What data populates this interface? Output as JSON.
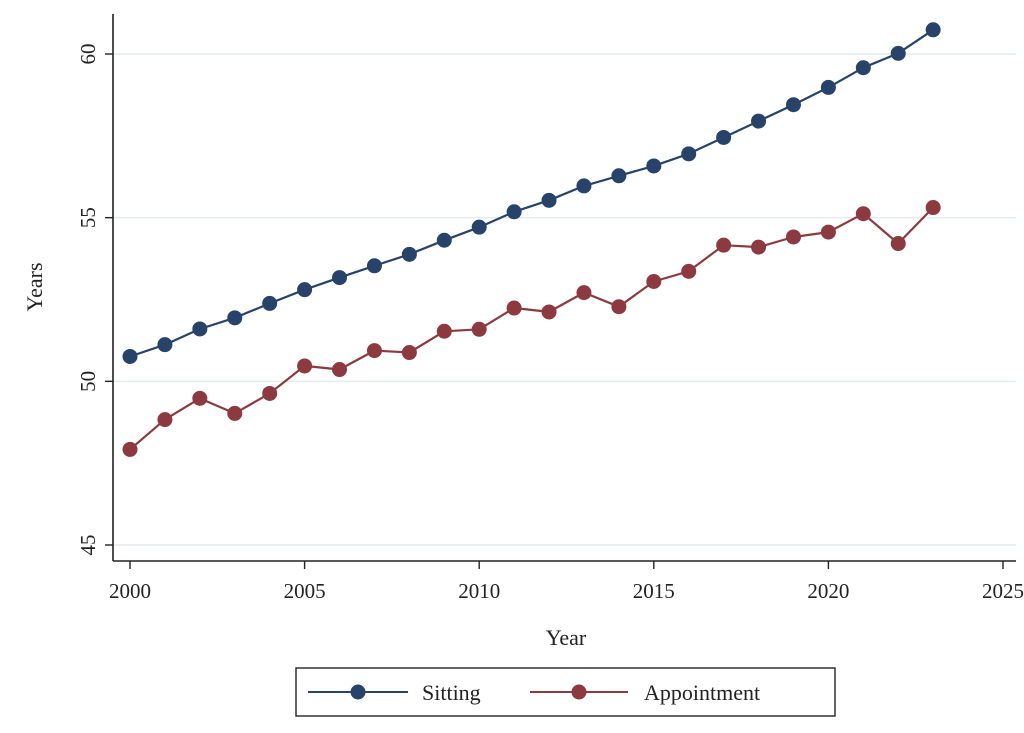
{
  "chart_data": {
    "type": "line",
    "title": "",
    "xlabel": "Year",
    "ylabel": "Years",
    "xlim": [
      2000,
      2025
    ],
    "ylim": [
      44.5,
      61.2
    ],
    "x_ticks": [
      2000,
      2005,
      2010,
      2015,
      2020,
      2025
    ],
    "x_tick_labels": [
      "2000",
      "2005",
      "2010",
      "2015",
      "2020",
      "2025"
    ],
    "y_ticks": [
      45,
      50,
      55,
      60
    ],
    "y_tick_labels": [
      "45",
      "50",
      "55",
      "60"
    ],
    "grid": "horizontal",
    "legend_position": "bottom",
    "x": [
      2000,
      2001,
      2002,
      2003,
      2004,
      2005,
      2006,
      2007,
      2008,
      2009,
      2010,
      2011,
      2012,
      2013,
      2014,
      2015,
      2016,
      2017,
      2018,
      2019,
      2020,
      2021,
      2022,
      2023
    ],
    "series": [
      {
        "name": "Sitting",
        "color": "#284369",
        "values": [
          50.76,
          51.12,
          51.6,
          51.94,
          52.38,
          52.8,
          53.17,
          53.53,
          53.88,
          54.31,
          54.71,
          55.18,
          55.53,
          55.97,
          56.28,
          56.58,
          56.95,
          57.45,
          57.95,
          58.45,
          58.98,
          59.58,
          60.02,
          60.74
        ]
      },
      {
        "name": "Appointment",
        "color": "#8c3a3f",
        "values": [
          47.92,
          48.83,
          49.48,
          49.02,
          49.63,
          50.47,
          50.36,
          50.94,
          50.88,
          51.53,
          51.59,
          52.24,
          52.12,
          52.71,
          52.28,
          53.05,
          53.36,
          54.16,
          54.1,
          54.41,
          54.56,
          55.12,
          54.21,
          55.31
        ]
      }
    ]
  }
}
